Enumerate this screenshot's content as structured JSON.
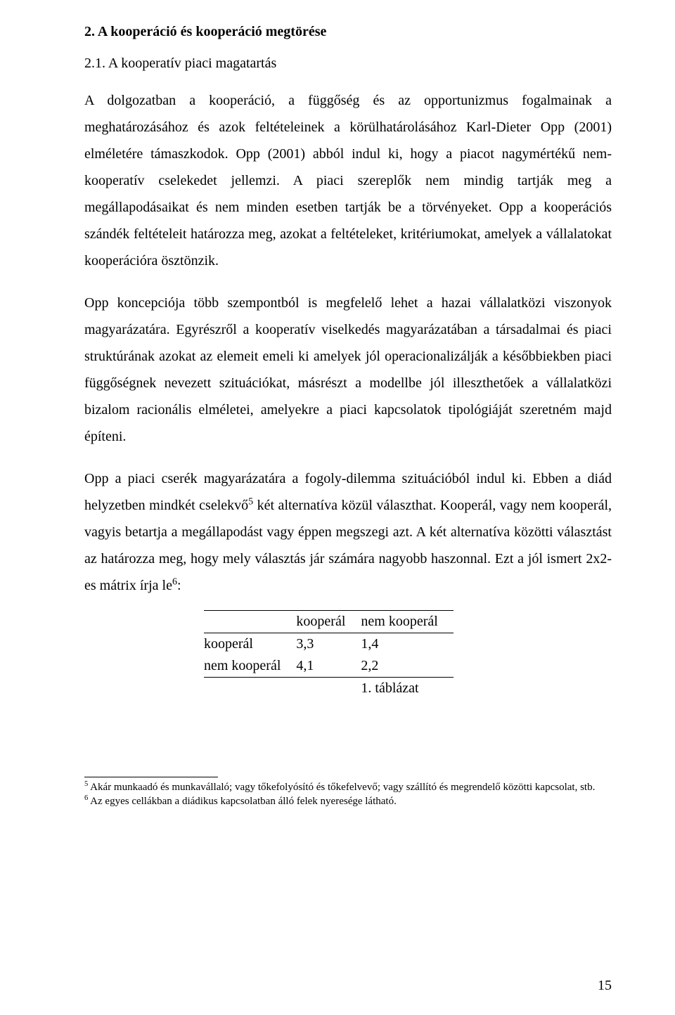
{
  "heading_section": "2. A kooperáció és kooperáció megtörése",
  "heading_sub": "2.1. A kooperatív piaci magatartás",
  "paragraphs": {
    "p1": "A dolgozatban a kooperáció, a függőség és az opportunizmus fogalmainak a meghatározásához és azok feltételeinek a körülhatárolásához Karl-Dieter Opp (2001) elméletére támaszkodok. Opp (2001) abból indul ki, hogy a piacot nagymértékű nem-kooperatív cselekedet jellemzi. A piaci szereplők nem mindig tartják meg a megállapodásaikat és nem minden esetben tartják be a törvényeket. Opp a kooperációs szándék feltételeit határozza meg, azokat a feltételeket, kritériumokat, amelyek a vállalatokat kooperációra ösztönzik.",
    "p2": "Opp koncepciója több szempontból is megfelelő lehet a hazai vállalatközi viszonyok magyarázatára. Egyrészről a kooperatív viselkedés magyarázatában a társadalmai és piaci struktúrának azokat az elemeit emeli ki amelyek jól operacionalizálják a későbbiekben piaci függőségnek nevezett szituációkat, másrészt a modellbe jól illeszthetőek a vállalatközi bizalom racionális elméletei, amelyekre a piaci kapcsolatok tipológiáját szeretném majd építeni.",
    "p3_a": "Opp a piaci cserék magyarázatára a fogoly-dilemma szituációból indul ki. Ebben a diád helyzetben mindkét cselekvő",
    "p3_b": " két alternatíva közül választhat. Kooperál, vagy nem kooperál, vagyis betartja a megállapodást vagy éppen megszegi azt. A két alternatíva közötti választást az határozza meg, hogy mely választás jár számára nagyobb haszonnal. Ezt a jól ismert 2x2-es mátrix írja le",
    "p3_c": ":"
  },
  "footnote_marks": {
    "fn5": "5",
    "fn6": "6"
  },
  "table": {
    "col_headers": [
      "",
      "kooperál",
      "nem kooperál"
    ],
    "rows": [
      [
        "kooperál",
        "3,3",
        "1,4"
      ],
      [
        "nem kooperál",
        "4,1",
        "2,2"
      ]
    ],
    "caption": "1. táblázat"
  },
  "footnotes": {
    "fn5_mark": "5",
    "fn5_text": " Akár munkaadó és munkavállaló; vagy tőkefolyósító és tőkefelvevő; vagy szállító és megrendelő közötti kapcsolat, stb.",
    "fn6_mark": "6",
    "fn6_text": " Az egyes cellákban a diádikus kapcsolatban álló felek nyeresége látható."
  },
  "page_number": "15"
}
